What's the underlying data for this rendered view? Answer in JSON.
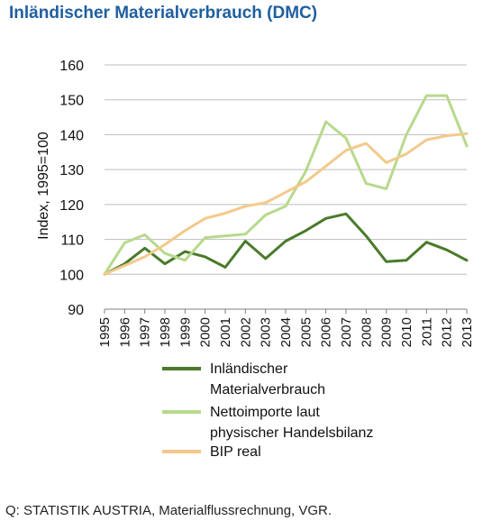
{
  "title": "Inländischer Materialverbrauch (DMC)",
  "source": "Q: STATISTIK AUSTRIA, Materialflussrechnung, VGR.",
  "chart_data": {
    "type": "line",
    "ylabel": "Index, 1995=100",
    "xlabel": "",
    "ylim": [
      90,
      160
    ],
    "yticks": [
      "90",
      "100",
      "110",
      "120",
      "130",
      "140",
      "150",
      "160"
    ],
    "grid": true,
    "legend_position": "bottom",
    "categories": [
      "1995",
      "1996",
      "1997",
      "1998",
      "1999",
      "2000",
      "2001",
      "2002",
      "2003",
      "2004",
      "2005",
      "2006",
      "2007",
      "2008",
      "2009",
      "2010",
      "2011",
      "2012",
      "2013"
    ],
    "series": [
      {
        "name": "Inländischer Materialverbrauch",
        "legend_lines": [
          "Inländischer",
          "Materialverbrauch"
        ],
        "color": "#4a7a2a",
        "values": [
          100,
          103,
          107.5,
          103,
          106.5,
          105,
          102,
          109.5,
          104.5,
          109.5,
          112.5,
          116,
          117.3,
          111,
          103.6,
          104,
          109.2,
          107,
          104
        ]
      },
      {
        "name": "Nettoimporte laut physischer Handelsbilanz",
        "legend_lines": [
          "Nettoimporte laut",
          "physischer Handelsbilanz"
        ],
        "color": "#b7d98c",
        "values": [
          100,
          109,
          111.3,
          106,
          104,
          110.5,
          111,
          111.5,
          117,
          119.5,
          129.5,
          143.7,
          139,
          126,
          124.5,
          140,
          151.2,
          151.2,
          136.8
        ]
      },
      {
        "name": "BIP real",
        "legend_lines": [
          "BIP real"
        ],
        "color": "#f3c98b",
        "values": [
          100,
          102.5,
          105,
          108.5,
          112.5,
          116,
          117.5,
          119.5,
          120.5,
          123.5,
          126.5,
          131,
          135.5,
          137.5,
          132,
          134.5,
          138.5,
          139.7,
          140.3
        ]
      }
    ]
  }
}
